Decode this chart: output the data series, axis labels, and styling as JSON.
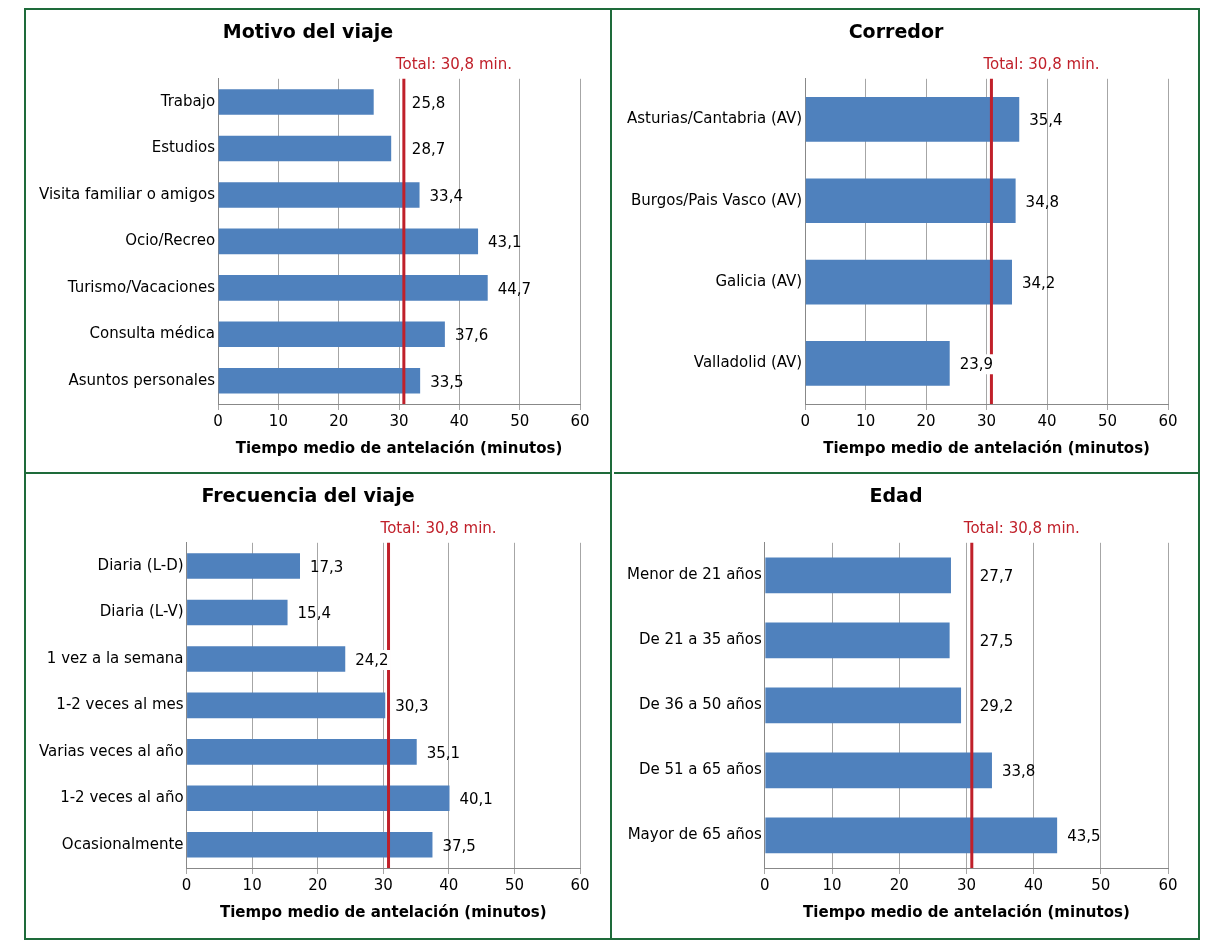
{
  "chart_data": [
    {
      "type": "bar",
      "orientation": "horizontal",
      "title": "Motivo del viaje",
      "xlabel": "Tiempo medio de antelación (minutos)",
      "categories": [
        "Trabajo",
        "Estudios",
        "Visita familiar o amigos",
        "Ocio/Recreo",
        "Turismo/Vacaciones",
        "Consulta médica",
        "Asuntos personales"
      ],
      "values": [
        25.8,
        28.7,
        33.4,
        43.1,
        44.7,
        37.6,
        33.5
      ],
      "value_labels": [
        "25,8",
        "28,7",
        "33,4",
        "43,1",
        "44,7",
        "37,6",
        "33,5"
      ],
      "color": "#4f81bd",
      "xlim": [
        0,
        60
      ],
      "xticks": [
        0,
        10,
        20,
        30,
        40,
        50,
        60
      ],
      "grid": "x",
      "ref_lines": [
        {
          "axis": "x",
          "value": 30.8,
          "label": "Total: 30,8 min.",
          "color": "#c0202a"
        }
      ]
    },
    {
      "type": "bar",
      "orientation": "horizontal",
      "title": "Corredor",
      "xlabel": "Tiempo medio de antelación (minutos)",
      "categories": [
        "Asturias/Cantabria (AV)",
        "Burgos/Pais Vasco (AV)",
        "Galicia (AV)",
        "Valladolid (AV)"
      ],
      "values": [
        35.4,
        34.8,
        34.2,
        23.9
      ],
      "value_labels": [
        "35,4",
        "34,8",
        "34,2",
        "23,9"
      ],
      "color": "#4f81bd",
      "xlim": [
        0,
        60
      ],
      "xticks": [
        0,
        10,
        20,
        30,
        40,
        50,
        60
      ],
      "grid": "x",
      "ref_lines": [
        {
          "axis": "x",
          "value": 30.8,
          "label": "Total: 30,8 min.",
          "color": "#c0202a"
        }
      ]
    },
    {
      "type": "bar",
      "orientation": "horizontal",
      "title": "Frecuencia del viaje",
      "xlabel": "Tiempo medio de antelación (minutos)",
      "categories": [
        "Diaria (L-D)",
        "Diaria (L-V)",
        "1 vez a la semana",
        "1-2 veces al mes",
        "Varias veces al año",
        "1-2 veces al año",
        "Ocasionalmente"
      ],
      "values": [
        17.3,
        15.4,
        24.2,
        30.3,
        35.1,
        40.1,
        37.5
      ],
      "value_labels": [
        "17,3",
        "15,4",
        "24,2",
        "30,3",
        "35,1",
        "40,1",
        "37,5"
      ],
      "color": "#4f81bd",
      "xlim": [
        0,
        60
      ],
      "xticks": [
        0,
        10,
        20,
        30,
        40,
        50,
        60
      ],
      "grid": "x",
      "ref_lines": [
        {
          "axis": "x",
          "value": 30.8,
          "label": "Total: 30,8 min.",
          "color": "#c0202a"
        }
      ]
    },
    {
      "type": "bar",
      "orientation": "horizontal",
      "title": "Edad",
      "xlabel": "Tiempo medio de antelación (minutos)",
      "categories": [
        "Menor de 21 años",
        "De 21 a 35 años",
        "De 36 a 50 años",
        "De 51 a 65 años",
        "Mayor de 65 años"
      ],
      "values": [
        27.7,
        27.5,
        29.2,
        33.8,
        43.5
      ],
      "value_labels": [
        "27,7",
        "27,5",
        "29,2",
        "33,8",
        "43,5"
      ],
      "color": "#4f81bd",
      "xlim": [
        0,
        60
      ],
      "xticks": [
        0,
        10,
        20,
        30,
        40,
        50,
        60
      ],
      "grid": "x",
      "ref_lines": [
        {
          "axis": "x",
          "value": 30.8,
          "label": "Total: 30,8 min.",
          "color": "#c0202a"
        }
      ]
    }
  ]
}
